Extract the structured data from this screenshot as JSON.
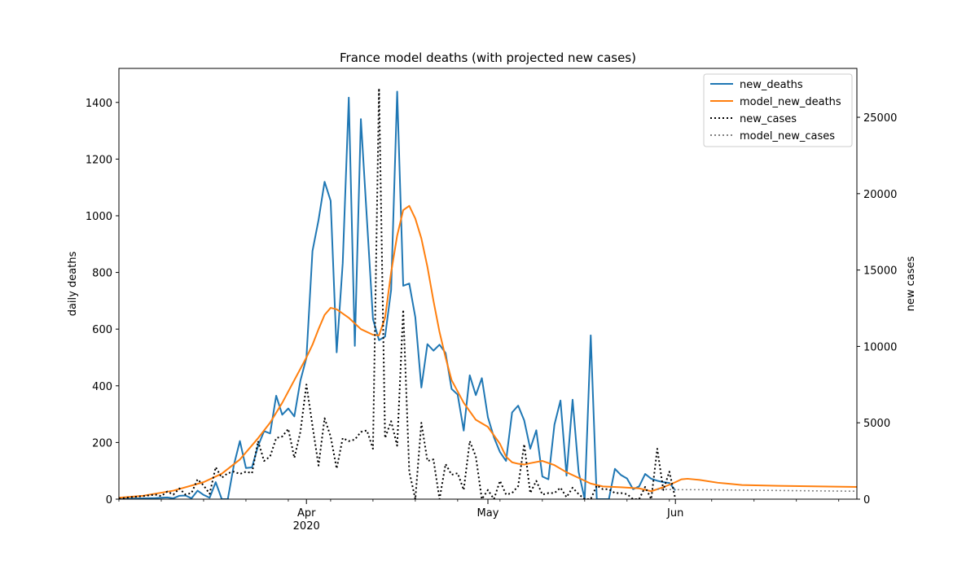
{
  "chart_data": {
    "type": "line",
    "title": "France model deaths (with projected new cases)",
    "x_axis": {
      "type": "date",
      "range": [
        "2020-03-01",
        "2020-07-01"
      ],
      "ticks": [
        {
          "date": "2020-04-01",
          "label": "Apr",
          "sublabel": "2020"
        },
        {
          "date": "2020-05-01",
          "label": "May",
          "sublabel": ""
        },
        {
          "date": "2020-06-01",
          "label": "Jun",
          "sublabel": ""
        }
      ]
    },
    "y_left": {
      "label": "daily deaths",
      "range": [
        0,
        1520
      ],
      "ticks": [
        0,
        200,
        400,
        600,
        800,
        1000,
        1200,
        1400
      ]
    },
    "y_right": {
      "label": "new cases",
      "range": [
        0,
        28200
      ],
      "ticks": [
        0,
        5000,
        10000,
        15000,
        20000,
        25000
      ]
    },
    "legend": {
      "position": "top-right"
    },
    "grid": false,
    "series": [
      {
        "name": "new_deaths",
        "axis": "left",
        "color": "#1f77b4",
        "style": "solid",
        "points": [
          [
            "2020-03-01",
            0
          ],
          [
            "2020-03-03",
            2
          ],
          [
            "2020-03-05",
            3
          ],
          [
            "2020-03-07",
            4
          ],
          [
            "2020-03-09",
            6
          ],
          [
            "2020-03-10",
            3
          ],
          [
            "2020-03-11",
            12
          ],
          [
            "2020-03-12",
            13
          ],
          [
            "2020-03-13",
            3
          ],
          [
            "2020-03-14",
            30
          ],
          [
            "2020-03-15",
            15
          ],
          [
            "2020-03-16",
            5
          ],
          [
            "2020-03-17",
            60
          ],
          [
            "2020-03-18",
            0
          ],
          [
            "2020-03-19",
            0
          ],
          [
            "2020-03-20",
            120
          ],
          [
            "2020-03-21",
            205
          ],
          [
            "2020-03-22",
            110
          ],
          [
            "2020-03-23",
            112
          ],
          [
            "2020-03-24",
            188
          ],
          [
            "2020-03-25",
            240
          ],
          [
            "2020-03-26",
            232
          ],
          [
            "2020-03-27",
            365
          ],
          [
            "2020-03-28",
            298
          ],
          [
            "2020-03-29",
            320
          ],
          [
            "2020-03-30",
            292
          ],
          [
            "2020-03-31",
            418
          ],
          [
            "2020-04-01",
            499
          ],
          [
            "2020-04-02",
            876
          ],
          [
            "2020-04-03",
            985
          ],
          [
            "2020-04-04",
            1120
          ],
          [
            "2020-04-05",
            1053
          ],
          [
            "2020-04-06",
            518
          ],
          [
            "2020-04-07",
            833
          ],
          [
            "2020-04-08",
            1417
          ],
          [
            "2020-04-09",
            541
          ],
          [
            "2020-04-10",
            1341
          ],
          [
            "2020-04-11",
            987
          ],
          [
            "2020-04-12",
            635
          ],
          [
            "2020-04-13",
            561
          ],
          [
            "2020-04-14",
            574
          ],
          [
            "2020-04-15",
            738
          ],
          [
            "2020-04-16",
            1438
          ],
          [
            "2020-04-17",
            753
          ],
          [
            "2020-04-18",
            761
          ],
          [
            "2020-04-19",
            642
          ],
          [
            "2020-04-20",
            394
          ],
          [
            "2020-04-21",
            547
          ],
          [
            "2020-04-22",
            524
          ],
          [
            "2020-04-23",
            545
          ],
          [
            "2020-04-24",
            516
          ],
          [
            "2020-04-25",
            389
          ],
          [
            "2020-04-26",
            369
          ],
          [
            "2020-04-27",
            242
          ],
          [
            "2020-04-28",
            437
          ],
          [
            "2020-04-29",
            367
          ],
          [
            "2020-04-30",
            427
          ],
          [
            "2020-05-01",
            289
          ],
          [
            "2020-05-02",
            218
          ],
          [
            "2020-05-03",
            166
          ],
          [
            "2020-05-04",
            135
          ],
          [
            "2020-05-05",
            306
          ],
          [
            "2020-05-06",
            330
          ],
          [
            "2020-05-07",
            278
          ],
          [
            "2020-05-08",
            178
          ],
          [
            "2020-05-09",
            243
          ],
          [
            "2020-05-10",
            80
          ],
          [
            "2020-05-11",
            70
          ],
          [
            "2020-05-12",
            263
          ],
          [
            "2020-05-13",
            348
          ],
          [
            "2020-05-14",
            83
          ],
          [
            "2020-05-15",
            351
          ],
          [
            "2020-05-16",
            96
          ],
          [
            "2020-05-17",
            0
          ],
          [
            "2020-05-18",
            578
          ],
          [
            "2020-05-19",
            0
          ],
          [
            "2020-05-20",
            0
          ],
          [
            "2020-05-21",
            0
          ],
          [
            "2020-05-22",
            107
          ],
          [
            "2020-05-23",
            85
          ],
          [
            "2020-05-24",
            73
          ],
          [
            "2020-05-25",
            35
          ],
          [
            "2020-05-26",
            45
          ],
          [
            "2020-05-27",
            89
          ],
          [
            "2020-05-28",
            72
          ],
          [
            "2020-05-29",
            65
          ],
          [
            "2020-05-30",
            60
          ],
          [
            "2020-05-31",
            57
          ],
          [
            "2020-06-01",
            31
          ]
        ]
      },
      {
        "name": "model_new_deaths",
        "axis": "left",
        "color": "#ff7f0e",
        "style": "solid",
        "points": [
          [
            "2020-03-01",
            5
          ],
          [
            "2020-03-05",
            12
          ],
          [
            "2020-03-10",
            30
          ],
          [
            "2020-03-15",
            60
          ],
          [
            "2020-03-18",
            90
          ],
          [
            "2020-03-21",
            140
          ],
          [
            "2020-03-24",
            215
          ],
          [
            "2020-03-26",
            270
          ],
          [
            "2020-03-28",
            340
          ],
          [
            "2020-03-30",
            420
          ],
          [
            "2020-04-01",
            500
          ],
          [
            "2020-04-02",
            545
          ],
          [
            "2020-04-03",
            600
          ],
          [
            "2020-04-04",
            650
          ],
          [
            "2020-04-05",
            675
          ],
          [
            "2020-04-06",
            670
          ],
          [
            "2020-04-08",
            640
          ],
          [
            "2020-04-10",
            600
          ],
          [
            "2020-04-12",
            580
          ],
          [
            "2020-04-13",
            578
          ],
          [
            "2020-04-14",
            640
          ],
          [
            "2020-04-15",
            800
          ],
          [
            "2020-04-16",
            930
          ],
          [
            "2020-04-17",
            1020
          ],
          [
            "2020-04-18",
            1035
          ],
          [
            "2020-04-19",
            990
          ],
          [
            "2020-04-20",
            920
          ],
          [
            "2020-04-21",
            820
          ],
          [
            "2020-04-22",
            700
          ],
          [
            "2020-04-23",
            590
          ],
          [
            "2020-04-24",
            500
          ],
          [
            "2020-04-25",
            420
          ],
          [
            "2020-04-27",
            340
          ],
          [
            "2020-04-29",
            280
          ],
          [
            "2020-05-01",
            255
          ],
          [
            "2020-05-03",
            195
          ],
          [
            "2020-05-04",
            150
          ],
          [
            "2020-05-05",
            130
          ],
          [
            "2020-05-06",
            125
          ],
          [
            "2020-05-07",
            122
          ],
          [
            "2020-05-08",
            127
          ],
          [
            "2020-05-10",
            135
          ],
          [
            "2020-05-12",
            120
          ],
          [
            "2020-05-14",
            95
          ],
          [
            "2020-05-16",
            75
          ],
          [
            "2020-05-18",
            55
          ],
          [
            "2020-05-20",
            45
          ],
          [
            "2020-05-23",
            42
          ],
          [
            "2020-05-26",
            38
          ],
          [
            "2020-05-28",
            28
          ],
          [
            "2020-05-30",
            42
          ],
          [
            "2020-06-01",
            60
          ],
          [
            "2020-06-02",
            70
          ],
          [
            "2020-06-03",
            72
          ],
          [
            "2020-06-05",
            68
          ],
          [
            "2020-06-08",
            58
          ],
          [
            "2020-06-12",
            50
          ],
          [
            "2020-06-18",
            47
          ],
          [
            "2020-06-25",
            45
          ],
          [
            "2020-07-01",
            43
          ]
        ]
      },
      {
        "name": "new_cases",
        "axis": "right",
        "color": "#000000",
        "style": "dotted",
        "points": [
          [
            "2020-03-01",
            30
          ],
          [
            "2020-03-03",
            130
          ],
          [
            "2020-03-05",
            200
          ],
          [
            "2020-03-06",
            250
          ],
          [
            "2020-03-07",
            300
          ],
          [
            "2020-03-08",
            200
          ],
          [
            "2020-03-09",
            500
          ],
          [
            "2020-03-10",
            300
          ],
          [
            "2020-03-11",
            700
          ],
          [
            "2020-03-12",
            300
          ],
          [
            "2020-03-13",
            400
          ],
          [
            "2020-03-14",
            1300
          ],
          [
            "2020-03-15",
            900
          ],
          [
            "2020-03-16",
            350
          ],
          [
            "2020-03-17",
            2100
          ],
          [
            "2020-03-18",
            1400
          ],
          [
            "2020-03-19",
            1700
          ],
          [
            "2020-03-20",
            1800
          ],
          [
            "2020-03-21",
            1650
          ],
          [
            "2020-03-22",
            1800
          ],
          [
            "2020-03-23",
            1700
          ],
          [
            "2020-03-24",
            3800
          ],
          [
            "2020-03-25",
            2500
          ],
          [
            "2020-03-26",
            2800
          ],
          [
            "2020-03-27",
            4000
          ],
          [
            "2020-03-28",
            4100
          ],
          [
            "2020-03-29",
            4600
          ],
          [
            "2020-03-30",
            2700
          ],
          [
            "2020-03-31",
            4400
          ],
          [
            "2020-04-01",
            7500
          ],
          [
            "2020-04-02",
            4800
          ],
          [
            "2020-04-03",
            2200
          ],
          [
            "2020-04-04",
            5300
          ],
          [
            "2020-04-05",
            4100
          ],
          [
            "2020-04-06",
            2000
          ],
          [
            "2020-04-07",
            4000
          ],
          [
            "2020-04-08",
            3800
          ],
          [
            "2020-04-09",
            3900
          ],
          [
            "2020-04-10",
            4400
          ],
          [
            "2020-04-11",
            4500
          ],
          [
            "2020-04-12",
            3300
          ],
          [
            "2020-04-13",
            26900
          ],
          [
            "2020-04-14",
            4000
          ],
          [
            "2020-04-15",
            5100
          ],
          [
            "2020-04-16",
            3500
          ],
          [
            "2020-04-17",
            12400
          ],
          [
            "2020-04-18",
            1800
          ],
          [
            "2020-04-19",
            0
          ],
          [
            "2020-04-20",
            5000
          ],
          [
            "2020-04-21",
            2500
          ],
          [
            "2020-04-22",
            2600
          ],
          [
            "2020-04-23",
            0
          ],
          [
            "2020-04-24",
            2300
          ],
          [
            "2020-04-25",
            1600
          ],
          [
            "2020-04-26",
            1700
          ],
          [
            "2020-04-27",
            600
          ],
          [
            "2020-04-28",
            3800
          ],
          [
            "2020-04-29",
            2800
          ],
          [
            "2020-04-30",
            0
          ],
          [
            "2020-05-01",
            600
          ],
          [
            "2020-05-02",
            0
          ],
          [
            "2020-05-03",
            1200
          ],
          [
            "2020-05-04",
            300
          ],
          [
            "2020-05-05",
            400
          ],
          [
            "2020-05-06",
            850
          ],
          [
            "2020-05-07",
            3600
          ],
          [
            "2020-05-08",
            400
          ],
          [
            "2020-05-09",
            1200
          ],
          [
            "2020-05-10",
            300
          ],
          [
            "2020-05-11",
            400
          ],
          [
            "2020-05-12",
            400
          ],
          [
            "2020-05-13",
            750
          ],
          [
            "2020-05-14",
            130
          ],
          [
            "2020-05-15",
            750
          ],
          [
            "2020-05-16",
            330
          ],
          [
            "2020-05-17",
            0
          ],
          [
            "2020-05-18",
            0
          ],
          [
            "2020-05-19",
            900
          ],
          [
            "2020-05-20",
            650
          ],
          [
            "2020-05-21",
            650
          ],
          [
            "2020-05-22",
            400
          ],
          [
            "2020-05-23",
            400
          ],
          [
            "2020-05-24",
            330
          ],
          [
            "2020-05-25",
            0
          ],
          [
            "2020-05-26",
            0
          ],
          [
            "2020-05-27",
            800
          ],
          [
            "2020-05-28",
            0
          ],
          [
            "2020-05-29",
            3300
          ],
          [
            "2020-05-30",
            600
          ],
          [
            "2020-05-31",
            1800
          ],
          [
            "2020-06-01",
            0
          ]
        ]
      },
      {
        "name": "model_new_cases",
        "axis": "right",
        "color": "#808080",
        "style": "dotted",
        "points": [
          [
            "2020-05-29",
            650
          ],
          [
            "2020-06-01",
            620
          ],
          [
            "2020-06-05",
            620
          ],
          [
            "2020-06-10",
            600
          ],
          [
            "2020-06-15",
            580
          ],
          [
            "2020-06-20",
            560
          ],
          [
            "2020-06-25",
            540
          ],
          [
            "2020-07-01",
            520
          ]
        ]
      }
    ]
  }
}
